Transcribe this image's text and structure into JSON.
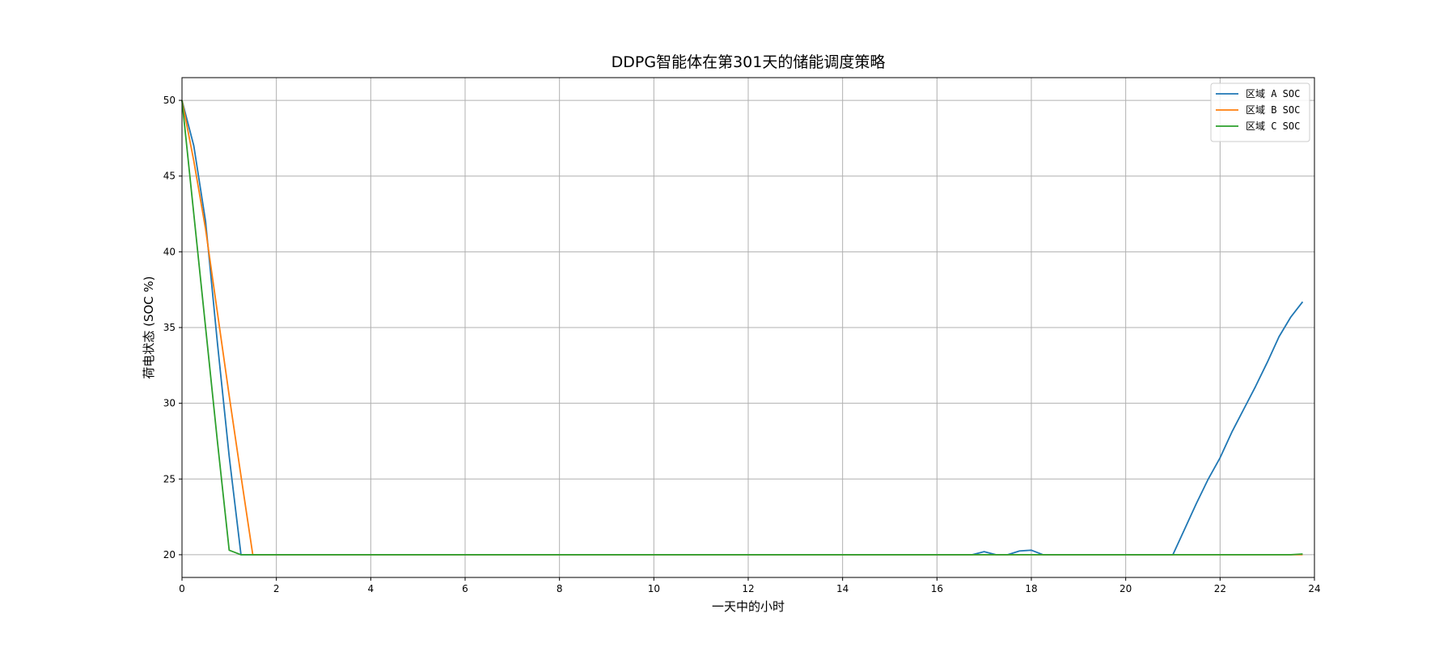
{
  "chart_data": {
    "type": "line",
    "title": "DDPG智能体在第301天的储能调度策略",
    "xlabel": "一天中的小时",
    "ylabel": "荷电状态 (SOC %)",
    "xlim": [
      0,
      24
    ],
    "ylim": [
      18.5,
      51.5
    ],
    "xticks": [
      0,
      2,
      4,
      6,
      8,
      10,
      12,
      14,
      16,
      18,
      20,
      22,
      24
    ],
    "yticks": [
      20,
      25,
      30,
      35,
      40,
      45,
      50
    ],
    "grid": true,
    "legend_position": "top-right",
    "series": [
      {
        "name": "区域 A SOC",
        "color": "#1f77b4",
        "x": [
          0,
          0.25,
          0.5,
          0.75,
          1.0,
          1.25,
          1.5,
          16.75,
          17.0,
          17.25,
          17.5,
          17.75,
          18.0,
          18.25,
          21.0,
          21.25,
          21.5,
          21.75,
          22.0,
          22.25,
          22.5,
          22.75,
          23.0,
          23.25,
          23.5,
          23.75
        ],
        "y": [
          50,
          47.0,
          42.0,
          34.0,
          26.5,
          20.0,
          20.0,
          20.0,
          20.2,
          20.0,
          20.0,
          20.25,
          20.3,
          20.0,
          20.0,
          21.7,
          23.4,
          25.0,
          26.4,
          28.1,
          29.6,
          31.1,
          32.7,
          34.4,
          35.7,
          36.7
        ]
      },
      {
        "name": "区域 B SOC",
        "color": "#ff7f0e",
        "x": [
          0,
          0.25,
          0.5,
          0.75,
          1.0,
          1.25,
          1.5,
          23.75
        ],
        "y": [
          50,
          46.0,
          41.5,
          36.0,
          30.5,
          25.2,
          20.0,
          20.0
        ]
      },
      {
        "name": "区域 C SOC",
        "color": "#2ca02c",
        "x": [
          0,
          0.25,
          0.5,
          0.75,
          1.0,
          1.25,
          23.5,
          23.75
        ],
        "y": [
          50,
          42.5,
          35.0,
          27.5,
          20.3,
          20.0,
          20.0,
          20.05
        ]
      }
    ]
  }
}
